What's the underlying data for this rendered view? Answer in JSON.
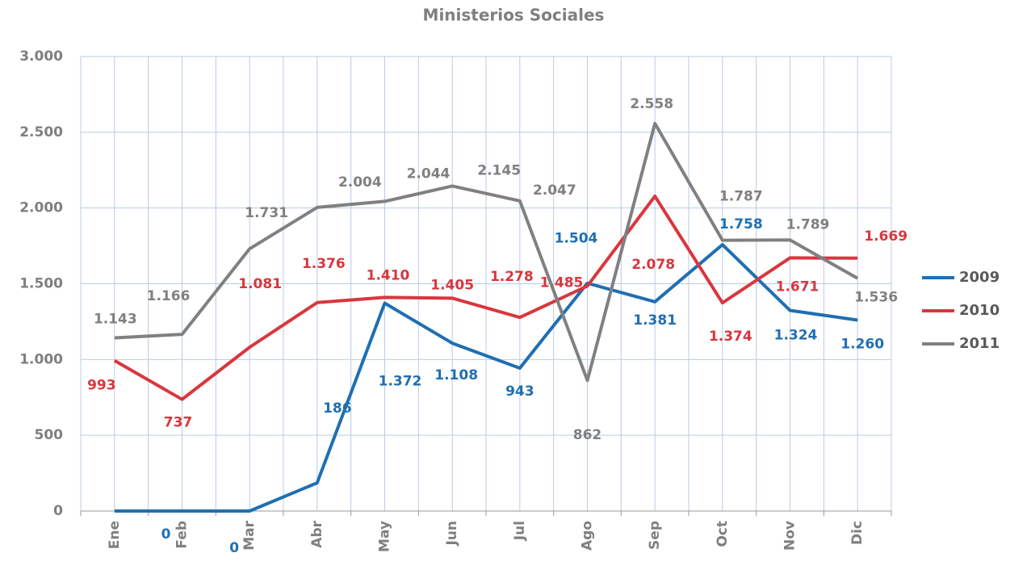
{
  "chart_data": {
    "type": "line",
    "title": "Ministerios Sociales",
    "categories": [
      "Ene",
      "Feb",
      "Mar",
      "Abr",
      "May",
      "Jun",
      "Jul",
      "Ago",
      "Sep",
      "Oct",
      "Nov",
      "Dic"
    ],
    "series": [
      {
        "name": "2009",
        "color": "#1f6fb2",
        "values": [
          0,
          0,
          0,
          186,
          1372,
          1108,
          943,
          1504,
          1381,
          1758,
          1324,
          1260
        ],
        "value_labels": [
          null,
          "0",
          "0",
          "186",
          "1.372",
          "1.108",
          "943",
          "1.504",
          "1.381",
          "1.758",
          "1.324",
          "1.260"
        ]
      },
      {
        "name": "2010",
        "color": "#d9363e",
        "values": [
          993,
          737,
          1081,
          1376,
          1410,
          1405,
          1278,
          1485,
          2078,
          1374,
          1671,
          1669
        ],
        "value_labels": [
          "993",
          "737",
          "1.081",
          "1.376",
          "1.410",
          "1.405",
          "1.278",
          "1.485",
          "2.078",
          "1.374",
          "1.671",
          "1.669"
        ]
      },
      {
        "name": "2011",
        "color": "#808080",
        "values": [
          1143,
          1166,
          1731,
          2004,
          2044,
          2145,
          2047,
          862,
          2558,
          1787,
          1789,
          1536
        ],
        "value_labels": [
          "1.143",
          "1.166",
          "1.731",
          "2.004",
          "2.044",
          "2.145",
          "2.047",
          "862",
          "2.558",
          "1.787",
          "1.789",
          "1.536"
        ]
      }
    ],
    "ylim": [
      0,
      3000
    ],
    "yticks": [
      0,
      500,
      {
        "value": 1000,
        "label": "1.000"
      },
      {
        "value": 1500,
        "label": "1.500"
      },
      {
        "value": 2000,
        "label": "2.000"
      },
      {
        "value": 2500,
        "label": "2.500"
      },
      {
        "value": 3000,
        "label": "3.000"
      }
    ],
    "grid": true,
    "legend": "right"
  }
}
